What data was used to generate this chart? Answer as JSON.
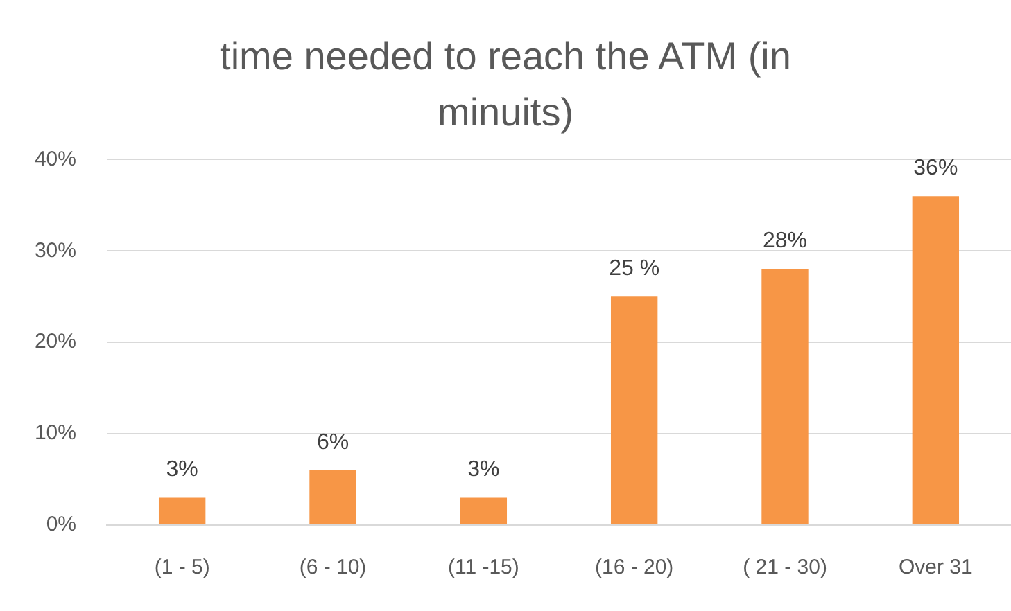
{
  "chart_data": {
    "type": "bar",
    "title": "time needed to reach the ATM (in minuits)",
    "categories": [
      "(1 - 5)",
      "(6 - 10)",
      "(11 -15)",
      "(16 - 20)",
      "( 21 - 30)",
      "Over 31"
    ],
    "values": [
      3,
      6,
      3,
      25,
      28,
      36
    ],
    "color": "#f79646",
    "value_labels": [
      "3%",
      "6%",
      "3%",
      "25 %",
      "28%",
      "36%"
    ],
    "ylim": [
      0,
      40
    ],
    "yticks": [
      {
        "value": 0,
        "label": "0%"
      },
      {
        "value": 10,
        "label": "10%"
      },
      {
        "value": 20,
        "label": "20%"
      },
      {
        "value": 30,
        "label": "30%"
      },
      {
        "value": 40,
        "label": "40%"
      }
    ],
    "grid": "y"
  }
}
